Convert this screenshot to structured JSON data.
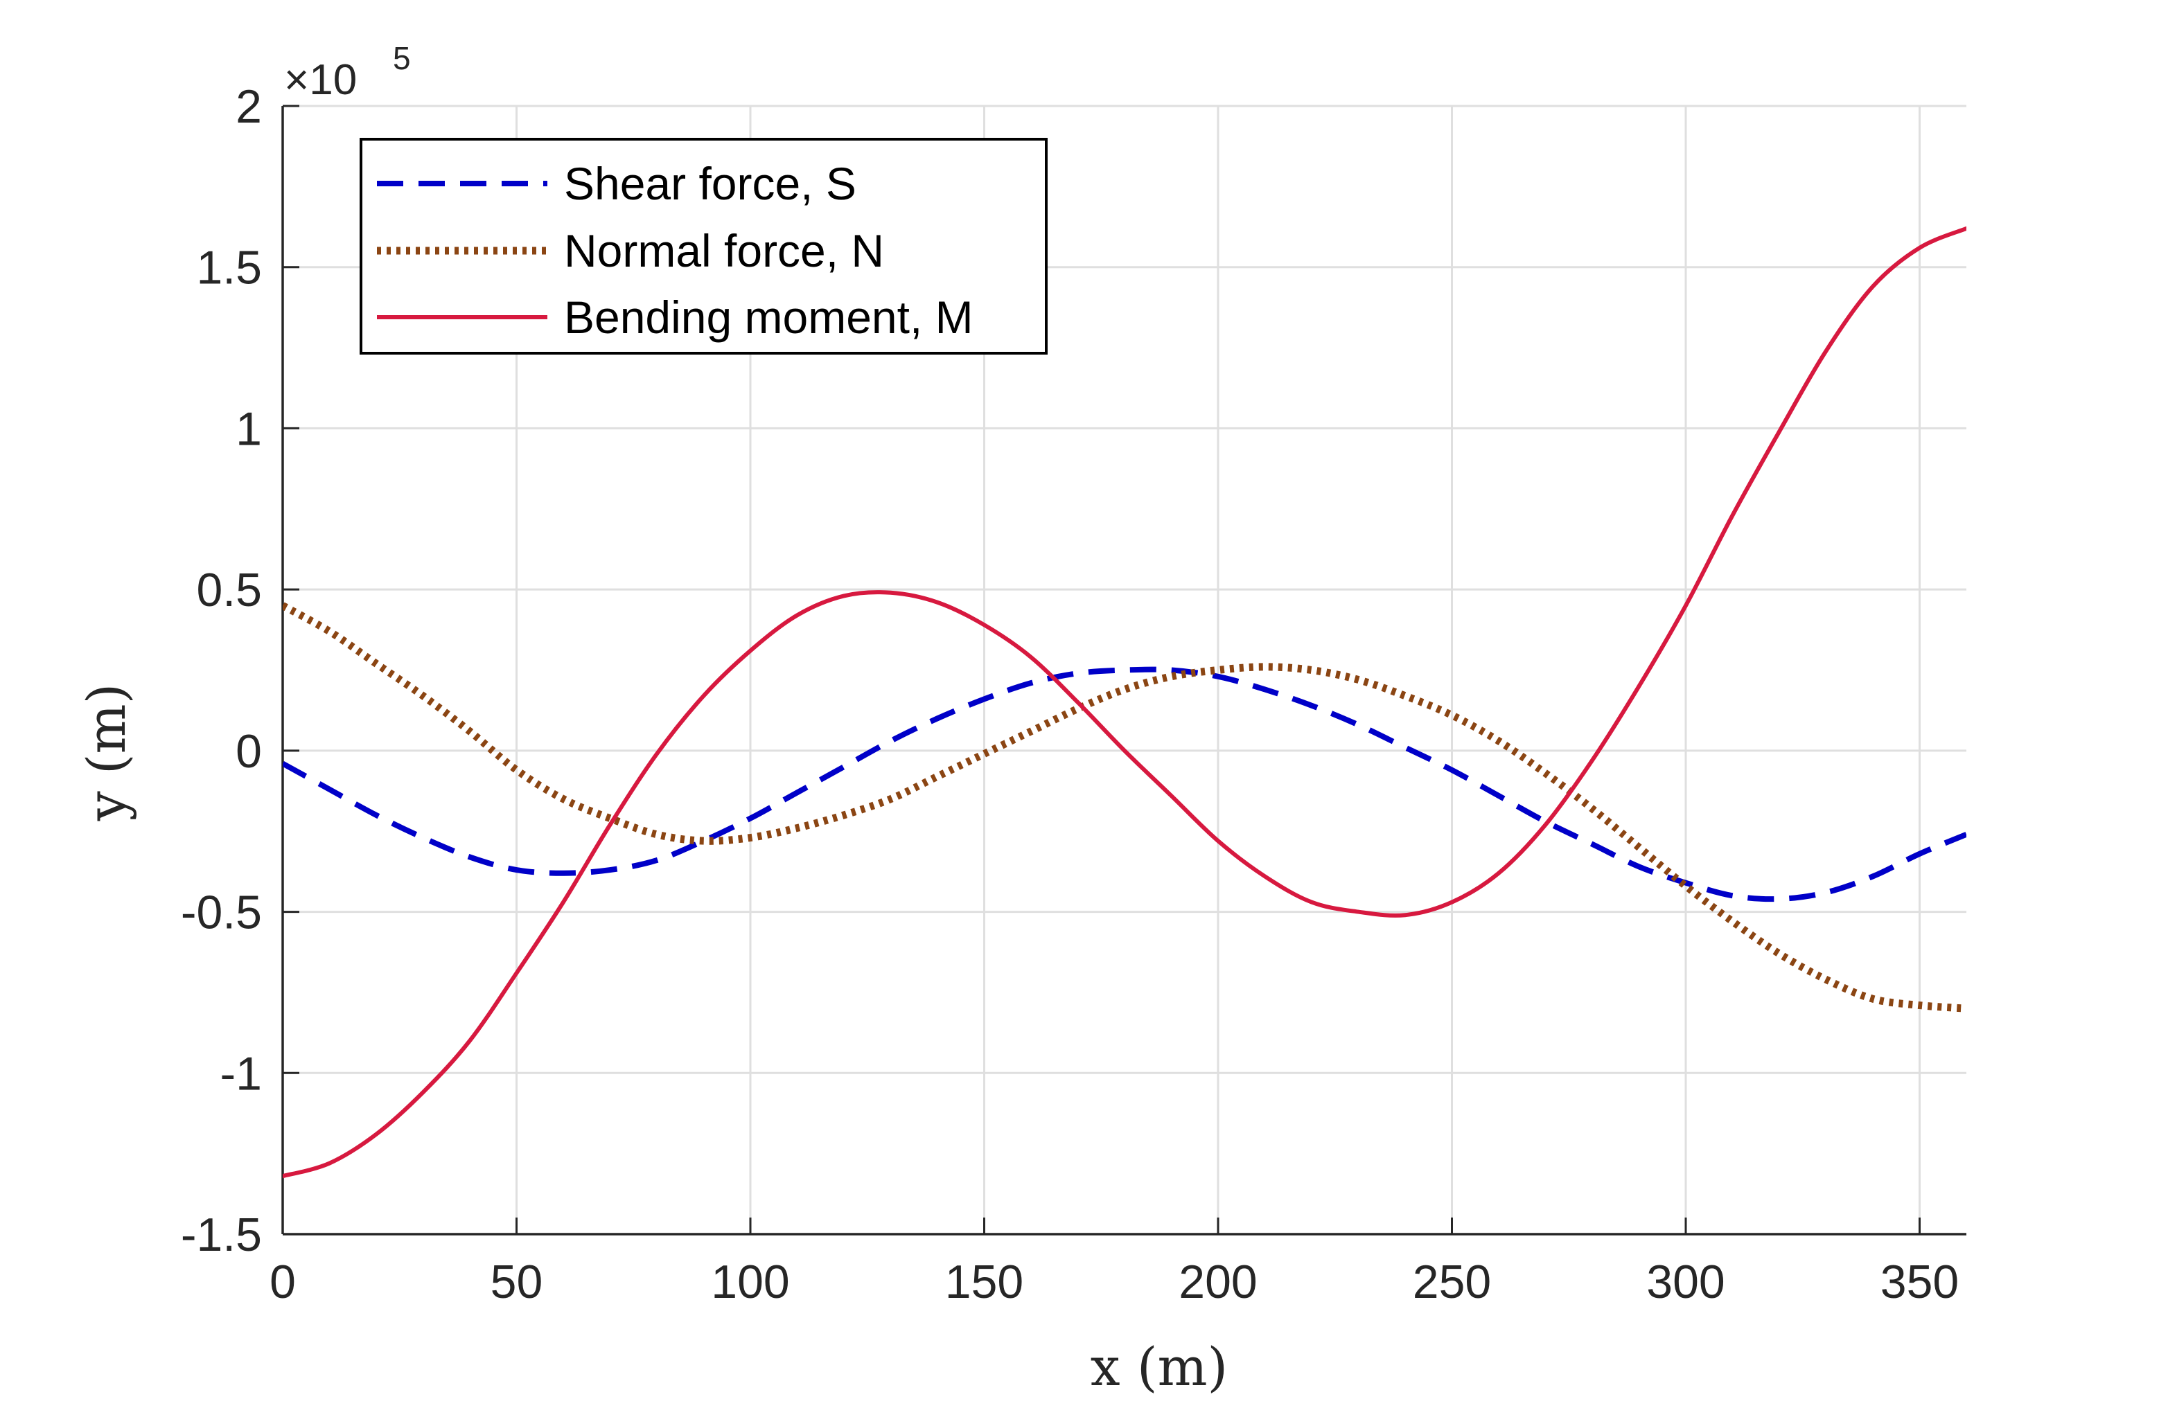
{
  "chart_data": {
    "type": "line",
    "xlabel": "x (m)",
    "ylabel": "y (m)",
    "xlim": [
      0,
      360
    ],
    "ylim": [
      -1.5,
      2
    ],
    "y_scale_factor": "×10",
    "y_scale_exponent": "5",
    "grid": true,
    "legend_position": "top-left",
    "x_ticks": [
      {
        "value": 0,
        "label": "0"
      },
      {
        "value": 50,
        "label": "50"
      },
      {
        "value": 100,
        "label": "100"
      },
      {
        "value": 150,
        "label": "150"
      },
      {
        "value": 200,
        "label": "200"
      },
      {
        "value": 250,
        "label": "250"
      },
      {
        "value": 300,
        "label": "300"
      },
      {
        "value": 350,
        "label": "350"
      }
    ],
    "y_ticks": [
      {
        "value": -1.5,
        "label": "-1.5"
      },
      {
        "value": -1,
        "label": "-1"
      },
      {
        "value": -0.5,
        "label": "-0.5"
      },
      {
        "value": 0,
        "label": "0"
      },
      {
        "value": 0.5,
        "label": "0.5"
      },
      {
        "value": 1,
        "label": "1"
      },
      {
        "value": 1.5,
        "label": "1.5"
      },
      {
        "value": 2,
        "label": "2"
      }
    ],
    "series": [
      {
        "name": "Shear force, S",
        "color": "#0000c8",
        "style": "dashed",
        "points": [
          [
            0,
            -0.04
          ],
          [
            10,
            -0.12
          ],
          [
            20,
            -0.2
          ],
          [
            30,
            -0.27
          ],
          [
            40,
            -0.33
          ],
          [
            50,
            -0.37
          ],
          [
            60,
            -0.38
          ],
          [
            70,
            -0.37
          ],
          [
            80,
            -0.34
          ],
          [
            90,
            -0.28
          ],
          [
            100,
            -0.21
          ],
          [
            110,
            -0.13
          ],
          [
            120,
            -0.05
          ],
          [
            130,
            0.03
          ],
          [
            140,
            0.1
          ],
          [
            150,
            0.16
          ],
          [
            160,
            0.21
          ],
          [
            170,
            0.24
          ],
          [
            180,
            0.25
          ],
          [
            190,
            0.25
          ],
          [
            200,
            0.23
          ],
          [
            210,
            0.19
          ],
          [
            220,
            0.14
          ],
          [
            230,
            0.08
          ],
          [
            240,
            0.01
          ],
          [
            250,
            -0.06
          ],
          [
            260,
            -0.14
          ],
          [
            270,
            -0.22
          ],
          [
            280,
            -0.29
          ],
          [
            290,
            -0.36
          ],
          [
            300,
            -0.41
          ],
          [
            310,
            -0.45
          ],
          [
            320,
            -0.46
          ],
          [
            330,
            -0.44
          ],
          [
            340,
            -0.39
          ],
          [
            350,
            -0.32
          ],
          [
            360,
            -0.26
          ]
        ]
      },
      {
        "name": "Normal force, N",
        "color": "#8b4513",
        "style": "dotted",
        "points": [
          [
            0,
            0.45
          ],
          [
            10,
            0.37
          ],
          [
            20,
            0.27
          ],
          [
            30,
            0.17
          ],
          [
            40,
            0.06
          ],
          [
            50,
            -0.06
          ],
          [
            60,
            -0.15
          ],
          [
            70,
            -0.21
          ],
          [
            80,
            -0.26
          ],
          [
            90,
            -0.28
          ],
          [
            100,
            -0.27
          ],
          [
            110,
            -0.24
          ],
          [
            120,
            -0.2
          ],
          [
            130,
            -0.15
          ],
          [
            140,
            -0.08
          ],
          [
            150,
            -0.01
          ],
          [
            160,
            0.06
          ],
          [
            170,
            0.13
          ],
          [
            180,
            0.19
          ],
          [
            190,
            0.23
          ],
          [
            200,
            0.25
          ],
          [
            210,
            0.26
          ],
          [
            220,
            0.25
          ],
          [
            230,
            0.22
          ],
          [
            240,
            0.17
          ],
          [
            250,
            0.11
          ],
          [
            260,
            0.03
          ],
          [
            270,
            -0.07
          ],
          [
            280,
            -0.18
          ],
          [
            290,
            -0.3
          ],
          [
            300,
            -0.42
          ],
          [
            310,
            -0.53
          ],
          [
            320,
            -0.63
          ],
          [
            330,
            -0.71
          ],
          [
            340,
            -0.77
          ],
          [
            350,
            -0.79
          ],
          [
            360,
            -0.8
          ]
        ]
      },
      {
        "name": "Bending moment, M",
        "color": "#d7193f",
        "style": "solid",
        "points": [
          [
            0,
            -1.32
          ],
          [
            10,
            -1.28
          ],
          [
            20,
            -1.19
          ],
          [
            30,
            -1.06
          ],
          [
            40,
            -0.9
          ],
          [
            50,
            -0.69
          ],
          [
            60,
            -0.47
          ],
          [
            70,
            -0.23
          ],
          [
            80,
            -0.01
          ],
          [
            90,
            0.17
          ],
          [
            100,
            0.31
          ],
          [
            110,
            0.42
          ],
          [
            120,
            0.48
          ],
          [
            130,
            0.49
          ],
          [
            140,
            0.46
          ],
          [
            150,
            0.39
          ],
          [
            160,
            0.29
          ],
          [
            170,
            0.15
          ],
          [
            180,
            0.0
          ],
          [
            190,
            -0.14
          ],
          [
            200,
            -0.28
          ],
          [
            210,
            -0.39
          ],
          [
            220,
            -0.47
          ],
          [
            230,
            -0.5
          ],
          [
            240,
            -0.51
          ],
          [
            250,
            -0.47
          ],
          [
            260,
            -0.38
          ],
          [
            270,
            -0.23
          ],
          [
            280,
            -0.03
          ],
          [
            290,
            0.2
          ],
          [
            300,
            0.45
          ],
          [
            310,
            0.73
          ],
          [
            320,
            0.99
          ],
          [
            330,
            1.24
          ],
          [
            340,
            1.44
          ],
          [
            350,
            1.56
          ],
          [
            360,
            1.62
          ]
        ]
      }
    ]
  }
}
